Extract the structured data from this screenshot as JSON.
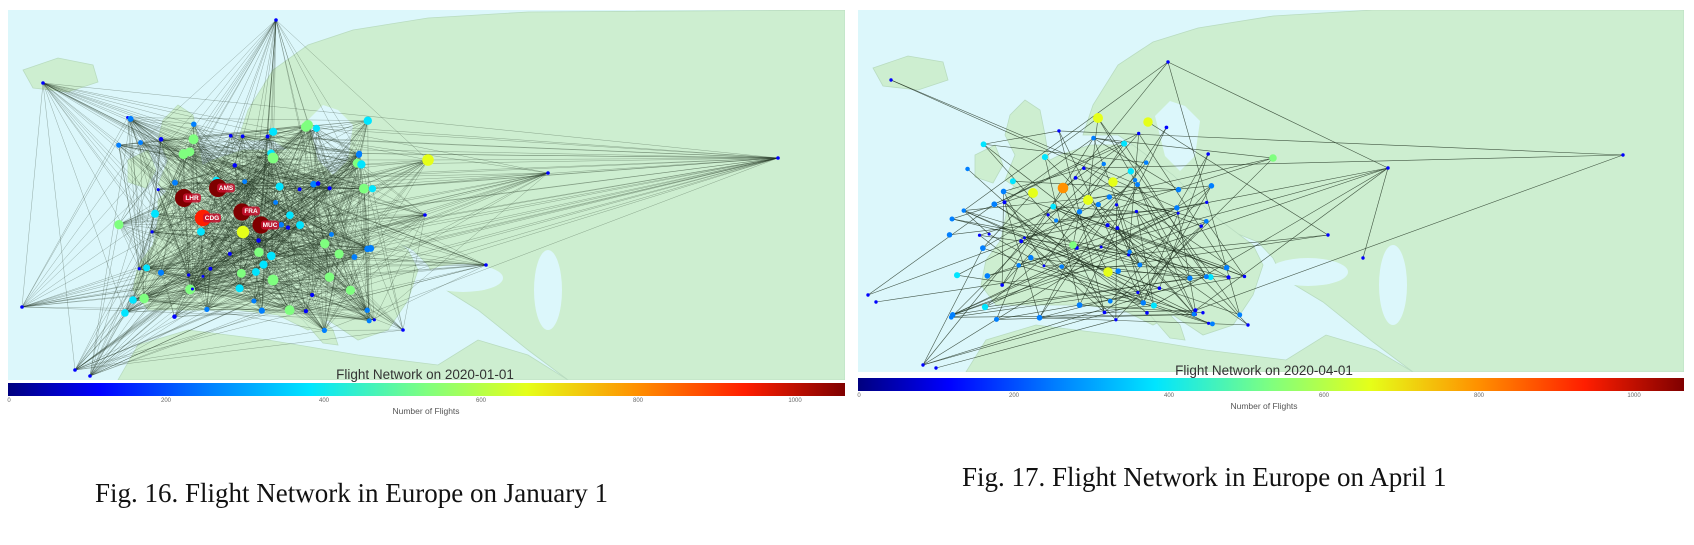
{
  "figures": [
    {
      "id": "fig16",
      "map_title": "Flight Network on 2020-01-01",
      "colorbar_label": "Number of Flights",
      "colorbar_ticks": [
        "0",
        "200",
        "400",
        "600",
        "800",
        "1000"
      ],
      "hub_labels": [
        "LHR",
        "AMS",
        "FRA",
        "CDG",
        "MUC"
      ],
      "caption": "Fig. 16.  Flight Network in Europe on January 1",
      "colors": {
        "sea": "#dcf7fb",
        "land": "#cdeed0",
        "edge": "#1e2f1e"
      }
    },
    {
      "id": "fig17",
      "map_title": "Flight Network on 2020-04-01",
      "colorbar_label": "Number of Flights",
      "colorbar_ticks": [
        "0",
        "200",
        "400",
        "600",
        "800",
        "1000"
      ],
      "caption": "Fig. 17.  Flight Network in Europe on April 1",
      "colors": {
        "sea": "#dcf7fb",
        "land": "#cdeed0",
        "edge": "#1e2f1e"
      }
    }
  ]
}
